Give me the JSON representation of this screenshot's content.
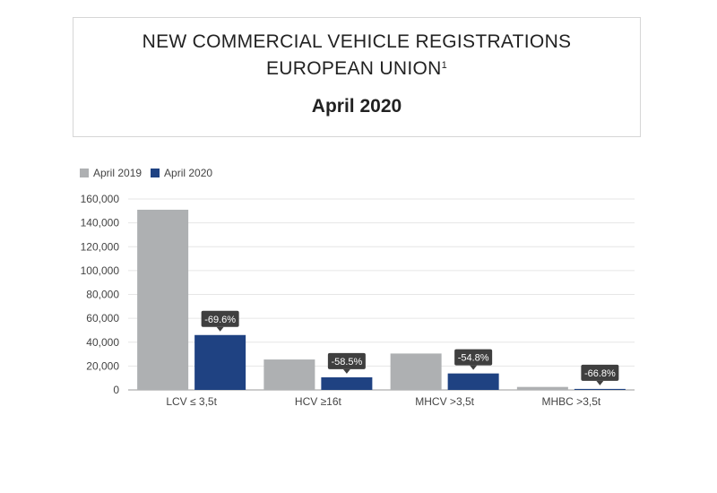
{
  "header": {
    "title_line1": "NEW COMMERCIAL VEHICLE REGISTRATIONS",
    "title_line2": "EUROPEAN UNION",
    "title_sup": "1",
    "period": "April 2020"
  },
  "colors": {
    "april_2019": "#aeb0b2",
    "april_2020": "#1f4282",
    "label_bg": "#3f3f3f"
  },
  "chart_data": {
    "type": "bar",
    "categories": [
      "LCV ≤ 3,5t",
      "HCV ≥16t",
      "MHCV >3,5t",
      "MHBC >3,5t"
    ],
    "series": [
      {
        "name": "April 2019",
        "values": [
          151000,
          25500,
          30500,
          2500
        ]
      },
      {
        "name": "April 2020",
        "values": [
          46000,
          10600,
          13800,
          830
        ]
      }
    ],
    "change_labels": [
      "-69.6%",
      "-58.5%",
      "-54.8%",
      "-66.8%"
    ],
    "yticks": [
      "0",
      "20,000",
      "40,000",
      "60,000",
      "80,000",
      "100,000",
      "120,000",
      "140,000",
      "160,000"
    ],
    "ylim": [
      0,
      160000
    ],
    "grid": true,
    "legend_position": "top-left"
  }
}
